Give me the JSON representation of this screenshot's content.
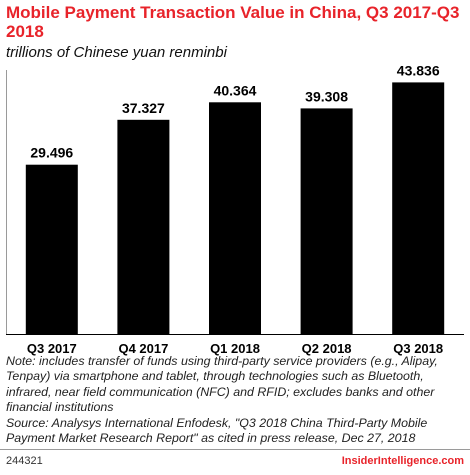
{
  "header": {
    "title": "Mobile Payment Transaction Value in China, Q3 2017-Q3 2018",
    "subtitle": "trillions of Chinese yuan renminbi"
  },
  "chart_data": {
    "type": "bar",
    "title": "Mobile Payment Transaction Value in China, Q3 2017-Q3 2018",
    "subtitle": "trillions of Chinese yuan renminbi",
    "categories": [
      "Q3 2017",
      "Q4 2017",
      "Q1 2018",
      "Q2 2018",
      "Q3 2018"
    ],
    "values": [
      29.496,
      37.327,
      40.364,
      39.308,
      43.836
    ],
    "value_labels": [
      "29.496",
      "37.327",
      "40.364",
      "39.308",
      "43.836"
    ],
    "ylim": [
      0,
      46
    ],
    "grid": false,
    "bar_color": "#000000",
    "xlabel": "",
    "ylabel": ""
  },
  "footer": {
    "note": "Note: includes transfer of funds using third-party service providers (e.g., Alipay, Tenpay) via smartphone and tablet, through technologies such as Bluetooth, infrared, near field communication (NFC) and RFID; excludes banks and other financial institutions",
    "source": "Source: Analysys International Enfodesk, \"Q3 2018 China Third-Party Mobile Payment Market Research Report\" as cited in press release, Dec 27, 2018",
    "chart_id": "244321",
    "brand": "InsiderIntelligence.com"
  },
  "colors": {
    "title": "#e8232a",
    "brand": "#e8232a",
    "bars": "#000000"
  }
}
